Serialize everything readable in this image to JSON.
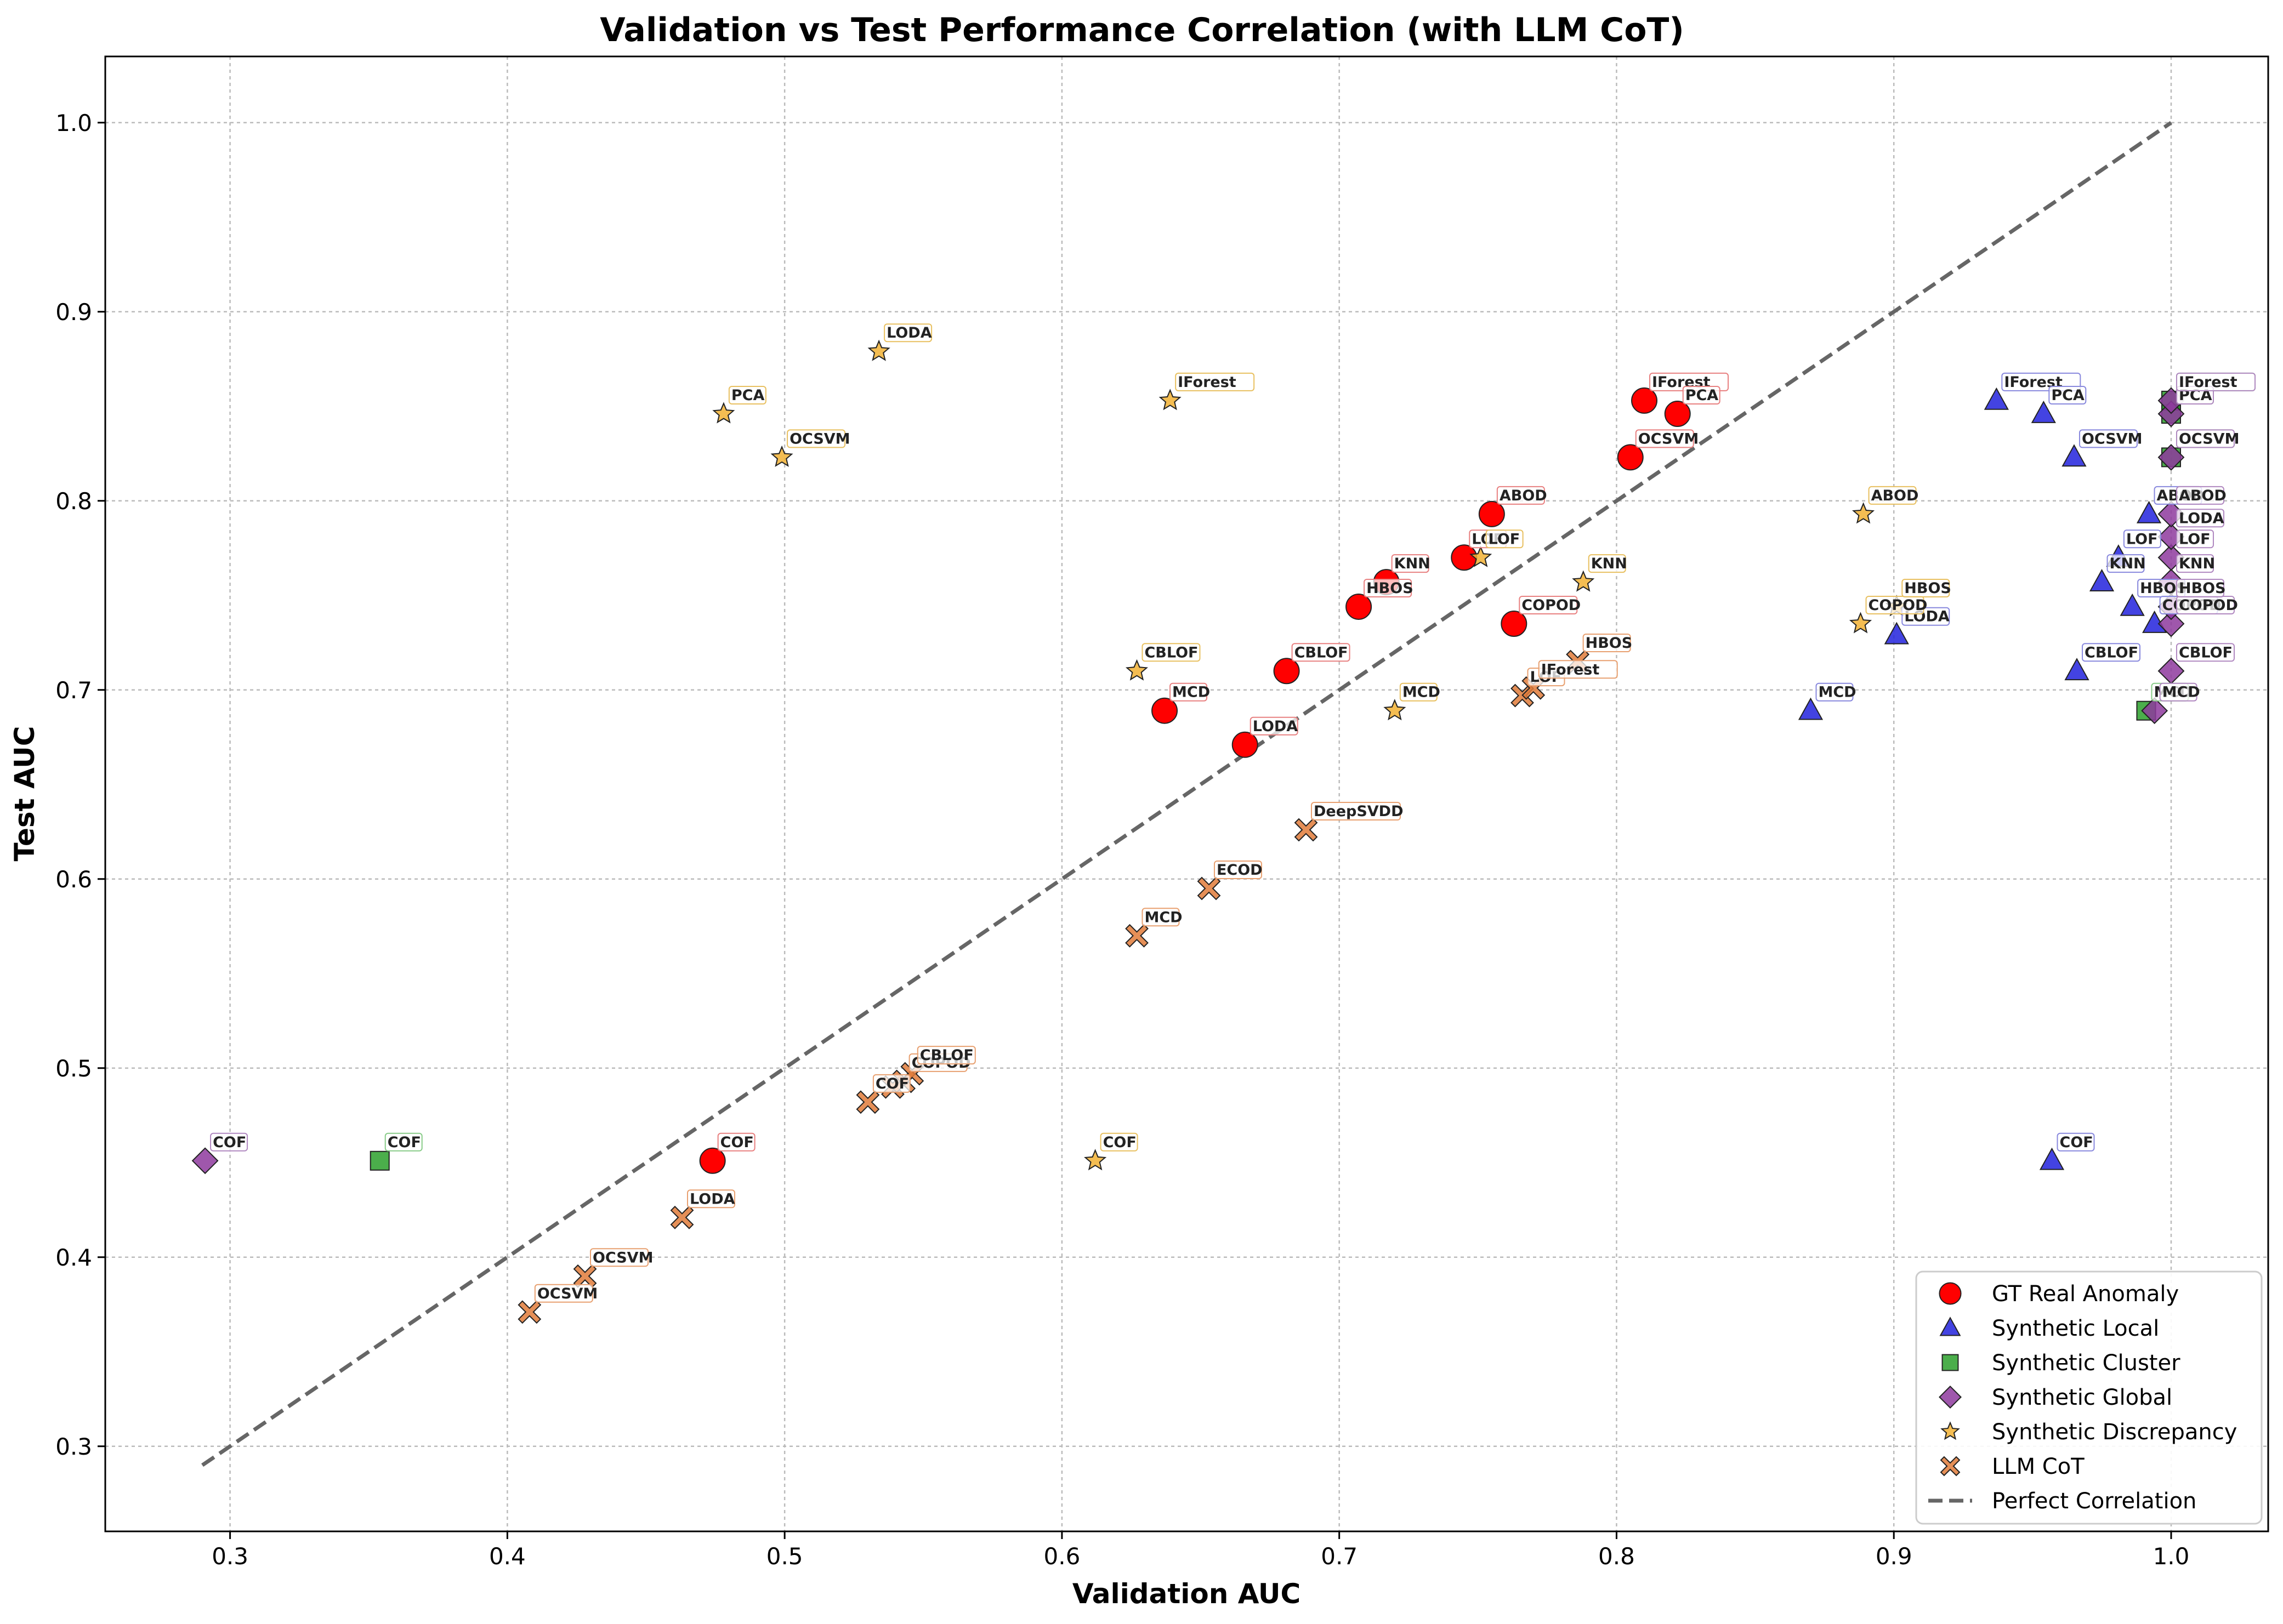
{
  "chart_data": {
    "type": "scatter",
    "title": "Validation vs Test Performance Correlation (with LLM CoT)",
    "xlabel": "Validation AUC",
    "ylabel": "Test AUC",
    "xlim": [
      0.255,
      1.035
    ],
    "ylim": [
      0.255,
      1.035
    ],
    "xticks": [
      "0.3",
      "0.4",
      "0.5",
      "0.6",
      "0.7",
      "0.8",
      "0.9",
      "1.0"
    ],
    "yticks": [
      "0.3",
      "0.4",
      "0.5",
      "0.6",
      "0.7",
      "0.8",
      "0.9",
      "1.0"
    ],
    "grid": true,
    "legend_position": "bottom-right",
    "reference_line": {
      "name": "Perfect Correlation",
      "color": "#666666",
      "from": [
        0.29,
        0.29
      ],
      "to": [
        1.0,
        1.0
      ]
    },
    "series": [
      {
        "name": "GT Real Anomaly",
        "marker": "circle",
        "color": "#ff0000",
        "label_border": "#e88080",
        "points": [
          {
            "label": "COF",
            "x": 0.474,
            "y": 0.451
          },
          {
            "label": "MCD",
            "x": 0.637,
            "y": 0.689
          },
          {
            "label": "LODA",
            "x": 0.666,
            "y": 0.671
          },
          {
            "label": "CBLOF",
            "x": 0.681,
            "y": 0.71
          },
          {
            "label": "HBOS",
            "x": 0.707,
            "y": 0.744
          },
          {
            "label": "KNN",
            "x": 0.717,
            "y": 0.757
          },
          {
            "label": "LOF",
            "x": 0.745,
            "y": 0.77
          },
          {
            "label": "ABOD",
            "x": 0.755,
            "y": 0.793
          },
          {
            "label": "COPOD",
            "x": 0.763,
            "y": 0.735
          },
          {
            "label": "OCSVM",
            "x": 0.805,
            "y": 0.823
          },
          {
            "label": "IForest",
            "x": 0.81,
            "y": 0.853
          },
          {
            "label": "PCA",
            "x": 0.822,
            "y": 0.846
          }
        ]
      },
      {
        "name": "Synthetic Local",
        "marker": "triangle",
        "color": "#2222dd",
        "label_border": "#8888dd",
        "points": [
          {
            "label": "MCD",
            "x": 0.87,
            "y": 0.689
          },
          {
            "label": "LODA",
            "x": 0.901,
            "y": 0.729
          },
          {
            "label": "IForest",
            "x": 0.937,
            "y": 0.853
          },
          {
            "label": "PCA",
            "x": 0.954,
            "y": 0.846
          },
          {
            "label": "COF",
            "x": 0.957,
            "y": 0.451
          },
          {
            "label": "OCSVM",
            "x": 0.965,
            "y": 0.823
          },
          {
            "label": "CBLOF",
            "x": 0.966,
            "y": 0.71
          },
          {
            "label": "KNN",
            "x": 0.975,
            "y": 0.757
          },
          {
            "label": "LOF",
            "x": 0.981,
            "y": 0.77
          },
          {
            "label": "HBOS",
            "x": 0.986,
            "y": 0.744
          },
          {
            "label": "ABOD",
            "x": 0.992,
            "y": 0.793
          },
          {
            "label": "COPOD",
            "x": 0.994,
            "y": 0.735
          }
        ]
      },
      {
        "name": "Synthetic Cluster",
        "marker": "square",
        "color": "#2ca02c",
        "label_border": "#88cc88",
        "points": [
          {
            "label": "COF",
            "x": 0.354,
            "y": 0.451
          },
          {
            "label": "MCD",
            "x": 0.991,
            "y": 0.689
          },
          {
            "label": "OCSVM",
            "x": 1.0,
            "y": 0.823
          },
          {
            "label": "PCA",
            "x": 1.0,
            "y": 0.846
          },
          {
            "label": "IForest",
            "x": 1.0,
            "y": 0.853
          }
        ]
      },
      {
        "name": "Synthetic Global",
        "marker": "diamond",
        "color": "#8e3a9e",
        "label_border": "#b088c0",
        "points": [
          {
            "label": "COF",
            "x": 0.291,
            "y": 0.451
          },
          {
            "label": "MCD",
            "x": 0.994,
            "y": 0.689
          },
          {
            "label": "CBLOF",
            "x": 1.0,
            "y": 0.71
          },
          {
            "label": "COPOD",
            "x": 1.0,
            "y": 0.735
          },
          {
            "label": "HBOS",
            "x": 1.0,
            "y": 0.744
          },
          {
            "label": "KNN",
            "x": 1.0,
            "y": 0.757
          },
          {
            "label": "LOF",
            "x": 1.0,
            "y": 0.77
          },
          {
            "label": "LODA",
            "x": 1.0,
            "y": 0.781
          },
          {
            "label": "ABOD",
            "x": 1.0,
            "y": 0.793
          },
          {
            "label": "OCSVM",
            "x": 1.0,
            "y": 0.823
          },
          {
            "label": "PCA",
            "x": 1.0,
            "y": 0.846
          },
          {
            "label": "IForest",
            "x": 1.0,
            "y": 0.853
          }
        ]
      },
      {
        "name": "Synthetic Discrepancy",
        "marker": "star",
        "color": "#f2b134",
        "label_border": "#e8c060",
        "points": [
          {
            "label": "PCA",
            "x": 0.478,
            "y": 0.846
          },
          {
            "label": "OCSVM",
            "x": 0.499,
            "y": 0.823
          },
          {
            "label": "LODA",
            "x": 0.534,
            "y": 0.879
          },
          {
            "label": "COF",
            "x": 0.612,
            "y": 0.451
          },
          {
            "label": "CBLOF",
            "x": 0.627,
            "y": 0.71
          },
          {
            "label": "IForest",
            "x": 0.639,
            "y": 0.853
          },
          {
            "label": "MCD",
            "x": 0.72,
            "y": 0.689
          },
          {
            "label": "LOF",
            "x": 0.751,
            "y": 0.77
          },
          {
            "label": "KNN",
            "x": 0.788,
            "y": 0.757
          },
          {
            "label": "COPOD",
            "x": 0.888,
            "y": 0.735
          },
          {
            "label": "ABOD",
            "x": 0.889,
            "y": 0.793
          },
          {
            "label": "HBOS",
            "x": 0.901,
            "y": 0.744
          }
        ]
      },
      {
        "name": "LLM CoT",
        "marker": "x",
        "color": "#e07b39",
        "label_border": "#e8a070",
        "points": [
          {
            "label": "OCSVM",
            "x": 0.408,
            "y": 0.371
          },
          {
            "label": "OCSVM",
            "x": 0.428,
            "y": 0.39
          },
          {
            "label": "LODA",
            "x": 0.463,
            "y": 0.421
          },
          {
            "label": "COF",
            "x": 0.53,
            "y": 0.482
          },
          {
            "label": "",
            "x": 0.539,
            "y": 0.49
          },
          {
            "label": "COPOD",
            "x": 0.543,
            "y": 0.493
          },
          {
            "label": "CBLOF",
            "x": 0.546,
            "y": 0.497
          },
          {
            "label": "MCD",
            "x": 0.627,
            "y": 0.57
          },
          {
            "label": "ECOD",
            "x": 0.653,
            "y": 0.595
          },
          {
            "label": "DeepSVDD",
            "x": 0.688,
            "y": 0.626
          },
          {
            "label": "LOF",
            "x": 0.766,
            "y": 0.697
          },
          {
            "label": "IForest",
            "x": 0.77,
            "y": 0.701
          },
          {
            "label": "HBOS",
            "x": 0.786,
            "y": 0.715
          }
        ]
      }
    ]
  }
}
